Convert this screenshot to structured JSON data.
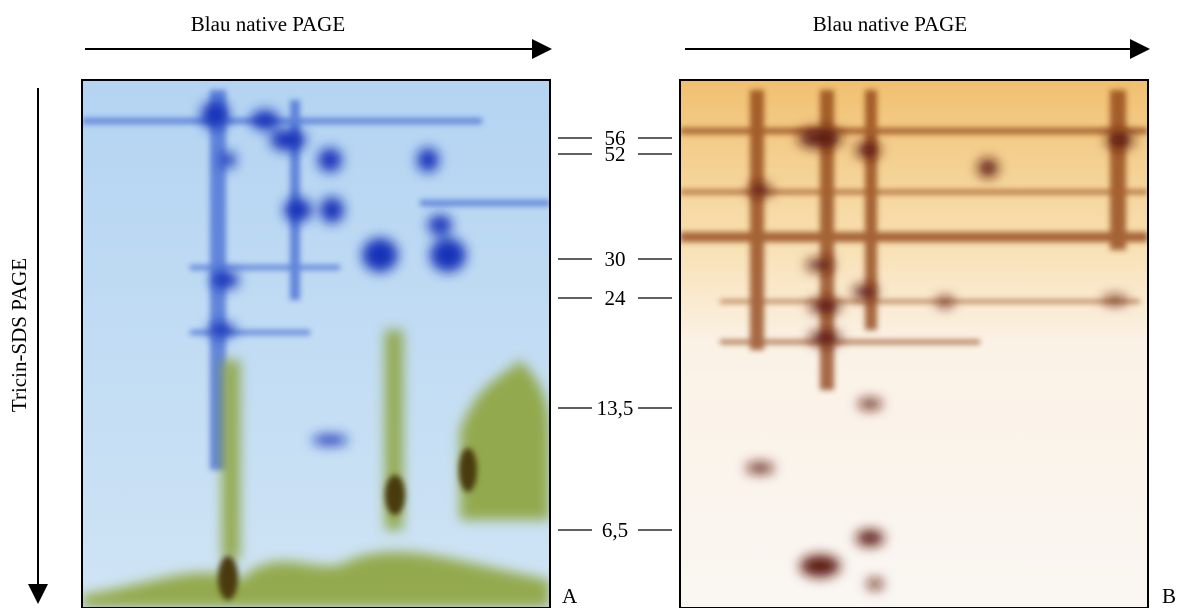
{
  "panel_a": {
    "top_label": "Blau native PAGE",
    "side_label": "Tricin-SDS PAGE",
    "letter": "A"
  },
  "panel_b": {
    "top_label": "Blau native PAGE",
    "letter": "B"
  },
  "markers": [
    "56",
    "52",
    "30",
    "24",
    "13,5",
    "6,5"
  ]
}
